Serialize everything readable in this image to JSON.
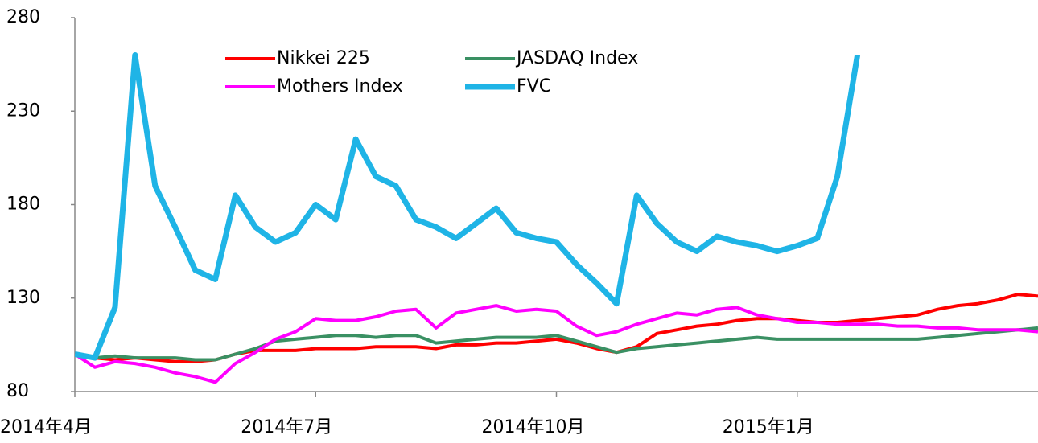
{
  "chart_data": {
    "type": "line",
    "categories": [
      "2014年4月",
      null,
      null,
      null,
      null,
      null,
      null,
      null,
      null,
      null,
      null,
      null,
      "2014年7月",
      null,
      null,
      null,
      null,
      null,
      null,
      null,
      null,
      null,
      null,
      null,
      "2014年10月",
      null,
      null,
      null,
      null,
      null,
      null,
      null,
      null,
      null,
      null,
      null,
      "2015年1月",
      null,
      null,
      null,
      null,
      null,
      null,
      null,
      null,
      null,
      null,
      null,
      null
    ],
    "series": [
      {
        "name": "Nikkei 225",
        "color": "#ff0000",
        "values": [
          100,
          98,
          97,
          98,
          97,
          96,
          96,
          97,
          100,
          102,
          102,
          102,
          103,
          103,
          103,
          104,
          104,
          104,
          103,
          105,
          105,
          106,
          106,
          107,
          108,
          106,
          103,
          101,
          104,
          111,
          113,
          115,
          116,
          118,
          119,
          119,
          118,
          117,
          117,
          118,
          119,
          120,
          121,
          124,
          126,
          127,
          129,
          132,
          131
        ]
      },
      {
        "name": "JASDAQ Index",
        "color": "#3a9063",
        "values": [
          100,
          98,
          99,
          98,
          98,
          98,
          97,
          97,
          100,
          103,
          107,
          108,
          109,
          110,
          110,
          109,
          110,
          110,
          106,
          107,
          108,
          109,
          109,
          109,
          110,
          107,
          104,
          101,
          103,
          104,
          105,
          106,
          107,
          108,
          109,
          108,
          108,
          108,
          108,
          108,
          108,
          108,
          108,
          109,
          110,
          111,
          112,
          113,
          114
        ]
      },
      {
        "name": "Mothers Index",
        "color": "#ff00ff",
        "values": [
          100,
          93,
          96,
          95,
          93,
          90,
          88,
          85,
          95,
          101,
          108,
          112,
          119,
          118,
          118,
          120,
          123,
          124,
          114,
          122,
          124,
          126,
          123,
          124,
          123,
          115,
          110,
          112,
          116,
          119,
          122,
          121,
          124,
          125,
          121,
          119,
          117,
          117,
          116,
          116,
          116,
          115,
          115,
          114,
          114,
          113,
          113,
          113,
          112
        ]
      },
      {
        "name": "FVC",
        "color": "#1fb4e6",
        "values": [
          100,
          98,
          125,
          260,
          190,
          168,
          145,
          140,
          185,
          168,
          160,
          165,
          180,
          172,
          215,
          195,
          190,
          172,
          168,
          162,
          170,
          178,
          165,
          162,
          160,
          148,
          138,
          127,
          185,
          170,
          160,
          155,
          163,
          160,
          158,
          155,
          158,
          162,
          195,
          260,
          null,
          null,
          null,
          null,
          null,
          null,
          null,
          null,
          null
        ]
      }
    ],
    "ylim": [
      80,
      280
    ],
    "yticks": [
      80,
      130,
      180,
      230,
      280
    ]
  }
}
